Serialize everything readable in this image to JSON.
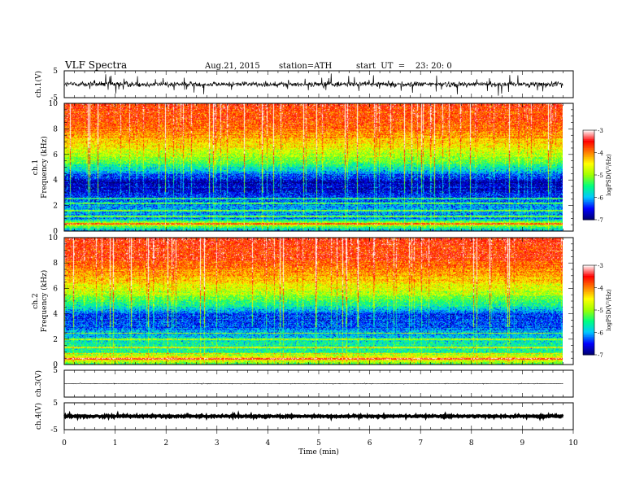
{
  "header": {
    "title": "VLF  Spectra",
    "date": "Aug.21, 2015",
    "station": "station=ATH",
    "start": "start  UT  =    23: 20: 0"
  },
  "chart_data": {
    "type": "heatmap",
    "x": {
      "label": "Time  (min)",
      "lim": [
        0,
        10
      ],
      "ticks": [
        "0",
        "1",
        "2",
        "3",
        "4",
        "5",
        "6",
        "7",
        "8",
        "9",
        "10"
      ],
      "data_end_min": 9.8
    },
    "channels": [
      {
        "id": "ch1_wave",
        "type": "line",
        "ylabel": "ch.1(V)",
        "ylim": [
          -5,
          5
        ],
        "ticks": [
          "5",
          "-5"
        ],
        "noise_amp_v": 0.9,
        "spike_amp_v": 3.5,
        "line_color": "#000000"
      },
      {
        "id": "ch1_spec",
        "type": "heatmap",
        "ylabel1": "ch.1",
        "ylabel2": "Frequency  (kHz)",
        "ylim": [
          0,
          10
        ],
        "ticks": [
          "0",
          "2",
          "4",
          "6",
          "8",
          "10"
        ],
        "zlabel": "logPSD(V²/Hz)",
        "zlim": [
          -7,
          -3
        ],
        "zticks": [
          "-3",
          "-4",
          "-5",
          "-6",
          "-7"
        ],
        "colormap": [
          "#000070",
          "#0000ff",
          "#00c8ff",
          "#00ff7f",
          "#a0ff00",
          "#ffff00",
          "#ff8000",
          "#ff0000",
          "#ffffff"
        ],
        "profile": [
          {
            "f": 0.0,
            "z": -6.3
          },
          {
            "f": 0.6,
            "z": -4.6
          },
          {
            "f": 1.0,
            "z": -6.2
          },
          {
            "f": 2.0,
            "z": -6.1
          },
          {
            "f": 3.0,
            "z": -6.6
          },
          {
            "f": 3.8,
            "z": -6.8
          },
          {
            "f": 4.6,
            "z": -6.1
          },
          {
            "f": 5.5,
            "z": -5.2
          },
          {
            "f": 6.5,
            "z": -4.6
          },
          {
            "f": 7.5,
            "z": -4.1
          },
          {
            "f": 8.5,
            "z": -3.8
          },
          {
            "f": 10.0,
            "z": -3.7
          }
        ],
        "lines_khz": [
          0.6,
          1.2,
          1.6,
          2.2,
          2.6
        ]
      },
      {
        "id": "ch2_spec",
        "type": "heatmap",
        "ylabel1": "ch.2",
        "ylabel2": "Frequency  (kHz)",
        "ylim": [
          0,
          10
        ],
        "ticks": [
          "0",
          "2",
          "4",
          "6",
          "8",
          "10"
        ],
        "zlabel": "logPSD(V²/Hz)",
        "zlim": [
          -7,
          -3
        ],
        "zticks": [
          "-3",
          "-4",
          "-5",
          "-6",
          "-7"
        ],
        "colormap": [
          "#000070",
          "#0000ff",
          "#00c8ff",
          "#00ff7f",
          "#a0ff00",
          "#ffff00",
          "#ff8000",
          "#ff0000",
          "#ffffff"
        ],
        "profile": [
          {
            "f": 0.0,
            "z": -5.4
          },
          {
            "f": 0.5,
            "z": -4.3
          },
          {
            "f": 1.0,
            "z": -5.5
          },
          {
            "f": 2.0,
            "z": -5.8
          },
          {
            "f": 3.0,
            "z": -6.3
          },
          {
            "f": 3.8,
            "z": -6.5
          },
          {
            "f": 4.6,
            "z": -5.7
          },
          {
            "f": 5.5,
            "z": -5.0
          },
          {
            "f": 6.5,
            "z": -4.4
          },
          {
            "f": 7.5,
            "z": -4.0
          },
          {
            "f": 8.5,
            "z": -3.7
          },
          {
            "f": 10.0,
            "z": -3.6
          }
        ],
        "lines_khz": [
          0.5,
          0.9,
          1.4,
          2.0,
          2.5
        ]
      },
      {
        "id": "ch3_wave",
        "type": "line",
        "ylabel": "ch.3(V)",
        "ylim": [
          -5,
          5
        ],
        "ticks": [
          "5"
        ],
        "noise_amp_v": 0.08,
        "spike_amp_v": 0.2,
        "line_color": "#000000"
      },
      {
        "id": "ch4_wave",
        "type": "line",
        "ylabel": "ch.4(V)",
        "ylim": [
          -5,
          5
        ],
        "ticks": [
          "5",
          "-5"
        ],
        "noise_amp_v": 0.25,
        "spike_amp_v": 0.3,
        "line_color": "#000000"
      }
    ]
  }
}
